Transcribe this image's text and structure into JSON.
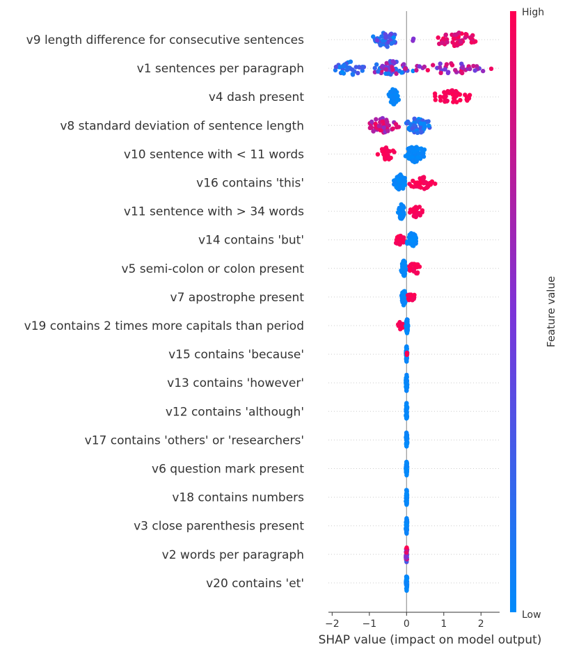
{
  "chart_data": {
    "type": "scatter",
    "subtype": "shap-beeswarm",
    "title": "",
    "xlabel": "SHAP value (impact on model output)",
    "xlim": [
      -2.1,
      2.5
    ],
    "xticks": [
      "−2",
      "−1",
      "0",
      "1",
      "2"
    ],
    "xtick_values": [
      -2,
      -1,
      0,
      1,
      2
    ],
    "grid": false,
    "zero_line": true,
    "colorbar": {
      "title": "Feature value",
      "high_label": "High",
      "low_label": "Low",
      "low_color": "#008bfb",
      "high_color": "#ff0052"
    },
    "features": [
      {
        "label": "v9 length difference for consecutive sentences",
        "clusters": [
          {
            "min": -1.0,
            "max": -0.1,
            "n": 46,
            "spread": 0.9,
            "vlo": 0.0,
            "vhi": 0.45
          },
          {
            "min": 0.15,
            "max": 0.2,
            "n": 2,
            "spread": 0.3,
            "vlo": 0.5,
            "vhi": 0.6
          },
          {
            "min": 0.7,
            "max": 2.0,
            "n": 48,
            "spread": 0.9,
            "vlo": 0.8,
            "vhi": 1.0
          }
        ]
      },
      {
        "label": "v1 sentences per paragraph",
        "clusters": [
          {
            "min": -2.0,
            "max": -1.0,
            "n": 36,
            "spread": 0.9,
            "vlo": 0.0,
            "vhi": 0.35
          },
          {
            "min": -1.0,
            "max": 0.2,
            "n": 60,
            "spread": 0.9,
            "vlo": 0.0,
            "vhi": 0.9
          },
          {
            "min": 0.2,
            "max": 2.35,
            "n": 40,
            "spread": 0.7,
            "vlo": 0.4,
            "vhi": 1.0
          }
        ]
      },
      {
        "label": "v4 dash present",
        "clusters": [
          {
            "min": -0.5,
            "max": -0.2,
            "n": 50,
            "spread": 1.0,
            "vlo": 0.0,
            "vhi": 0.05
          },
          {
            "min": 0.65,
            "max": 1.8,
            "n": 48,
            "spread": 0.8,
            "vlo": 0.95,
            "vhi": 1.0
          }
        ]
      },
      {
        "label": "v8 standard deviation of sentence length",
        "clusters": [
          {
            "min": -1.25,
            "max": -0.1,
            "n": 50,
            "spread": 0.9,
            "vlo": 0.55,
            "vhi": 1.0
          },
          {
            "min": -0.1,
            "max": 0.7,
            "n": 55,
            "spread": 1.0,
            "vlo": 0.0,
            "vhi": 0.3
          }
        ]
      },
      {
        "label": "v10 sentence with < 11 words",
        "clusters": [
          {
            "min": -0.8,
            "max": -0.3,
            "n": 24,
            "spread": 0.8,
            "vlo": 0.95,
            "vhi": 1.0
          },
          {
            "min": -0.1,
            "max": 0.55,
            "n": 60,
            "spread": 1.0,
            "vlo": 0.0,
            "vhi": 0.05
          }
        ]
      },
      {
        "label": "v16 contains 'this'",
        "clusters": [
          {
            "min": -0.35,
            "max": 0.0,
            "n": 45,
            "spread": 1.0,
            "vlo": 0.0,
            "vhi": 0.05
          },
          {
            "min": 0.05,
            "max": 0.8,
            "n": 40,
            "spread": 0.85,
            "vlo": 0.95,
            "vhi": 1.0
          }
        ]
      },
      {
        "label": "v11 sentence with > 34 words",
        "clusters": [
          {
            "min": -0.25,
            "max": -0.05,
            "n": 40,
            "spread": 1.0,
            "vlo": 0.0,
            "vhi": 0.05
          },
          {
            "min": 0.05,
            "max": 0.45,
            "n": 28,
            "spread": 0.75,
            "vlo": 0.95,
            "vhi": 1.0
          }
        ]
      },
      {
        "label": "v14 contains 'but'",
        "clusters": [
          {
            "min": -0.35,
            "max": -0.05,
            "n": 22,
            "spread": 0.6,
            "vlo": 0.95,
            "vhi": 1.0
          },
          {
            "min": 0.0,
            "max": 0.3,
            "n": 40,
            "spread": 1.0,
            "vlo": 0.0,
            "vhi": 0.05
          }
        ]
      },
      {
        "label": "v5 semi-colon or colon present",
        "clusters": [
          {
            "min": -0.15,
            "max": 0.0,
            "n": 44,
            "spread": 1.0,
            "vlo": 0.0,
            "vhi": 0.05
          },
          {
            "min": 0.0,
            "max": 0.4,
            "n": 26,
            "spread": 0.85,
            "vlo": 0.95,
            "vhi": 1.0
          }
        ]
      },
      {
        "label": "v7 apostrophe present",
        "clusters": [
          {
            "min": -0.15,
            "max": 0.0,
            "n": 40,
            "spread": 1.0,
            "vlo": 0.0,
            "vhi": 0.05
          },
          {
            "min": 0.0,
            "max": 0.25,
            "n": 16,
            "spread": 0.5,
            "vlo": 0.95,
            "vhi": 1.0
          }
        ]
      },
      {
        "label": "v19 contains 2 times more capitals than period",
        "clusters": [
          {
            "min": -0.3,
            "max": -0.05,
            "n": 12,
            "spread": 0.45,
            "vlo": 0.95,
            "vhi": 1.0
          },
          {
            "min": -0.02,
            "max": 0.05,
            "n": 40,
            "spread": 1.0,
            "vlo": 0.0,
            "vhi": 0.05
          }
        ]
      },
      {
        "label": "v15 contains 'because'",
        "clusters": [
          {
            "min": -0.02,
            "max": 0.02,
            "n": 40,
            "spread": 1.0,
            "vlo": 0.0,
            "vhi": 0.05
          },
          {
            "min": 0.0,
            "max": 0.02,
            "n": 2,
            "spread": 0.2,
            "vlo": 1.0,
            "vhi": 1.0
          }
        ]
      },
      {
        "label": "v13 contains 'however'",
        "clusters": [
          {
            "min": -0.02,
            "max": 0.02,
            "n": 40,
            "spread": 1.0,
            "vlo": 0.0,
            "vhi": 0.05
          }
        ]
      },
      {
        "label": "v12 contains 'although'",
        "clusters": [
          {
            "min": -0.02,
            "max": 0.02,
            "n": 40,
            "spread": 1.0,
            "vlo": 0.0,
            "vhi": 0.05
          }
        ]
      },
      {
        "label": "v17 contains 'others' or 'researchers'",
        "clusters": [
          {
            "min": -0.02,
            "max": 0.02,
            "n": 40,
            "spread": 1.0,
            "vlo": 0.0,
            "vhi": 0.05
          }
        ]
      },
      {
        "label": "v6 question mark present",
        "clusters": [
          {
            "min": -0.02,
            "max": 0.02,
            "n": 40,
            "spread": 1.0,
            "vlo": 0.0,
            "vhi": 0.05
          }
        ]
      },
      {
        "label": "v18 contains numbers",
        "clusters": [
          {
            "min": -0.02,
            "max": 0.02,
            "n": 40,
            "spread": 1.0,
            "vlo": 0.0,
            "vhi": 0.05
          }
        ]
      },
      {
        "label": "v3 close parenthesis present",
        "clusters": [
          {
            "min": -0.02,
            "max": 0.02,
            "n": 40,
            "spread": 1.0,
            "vlo": 0.0,
            "vhi": 0.05
          }
        ]
      },
      {
        "label": "v2 words per paragraph",
        "clusters": [
          {
            "min": -0.02,
            "max": 0.02,
            "n": 30,
            "spread": 1.0,
            "vlo": 0.0,
            "vhi": 1.0
          }
        ]
      },
      {
        "label": "v20 contains 'et'",
        "clusters": [
          {
            "min": -0.02,
            "max": 0.02,
            "n": 40,
            "spread": 1.0,
            "vlo": 0.0,
            "vhi": 0.05
          }
        ]
      }
    ]
  }
}
